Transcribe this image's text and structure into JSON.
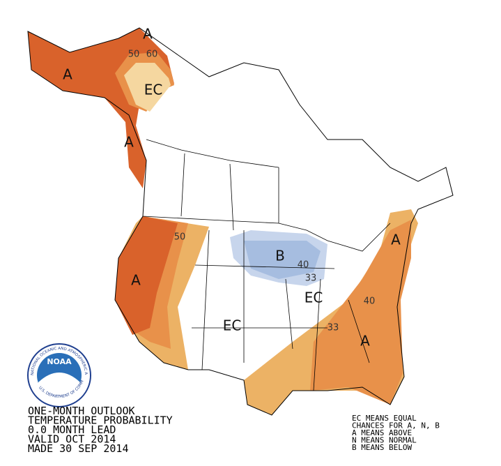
{
  "map_labels": [
    "A",
    "A",
    "EC",
    "A",
    "A",
    "B",
    "A",
    "EC",
    "EC",
    "A"
  ],
  "contour_labels": [
    "50",
    "60",
    "50",
    "40",
    "33",
    "40",
    "33"
  ],
  "logo": {
    "name": "NOAA",
    "ring_top": "NATIONAL OCEANIC AND ATMOSPHERIC ADMINISTRATION",
    "ring_bottom": "U.S. DEPARTMENT OF COMMERCE"
  },
  "title_block": {
    "lines": [
      "ONE-MONTH OUTLOOK",
      "TEMPERATURE PROBABILITY",
      "0.0 MONTH LEAD",
      "VALID OCT 2014",
      "MADE 30 SEP 2014"
    ]
  },
  "legend": {
    "lines": [
      "EC MEANS EQUAL",
      "CHANCES FOR A, N, B",
      "A MEANS ABOVE",
      "N MEANS NORMAL",
      "B MEANS BELOW"
    ]
  }
}
